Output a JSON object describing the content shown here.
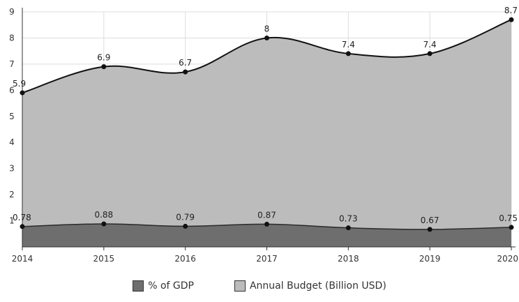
{
  "chart_data": {
    "type": "area",
    "title": "",
    "xlabel": "",
    "ylabel": "",
    "categories": [
      "2014",
      "2015",
      "2016",
      "2017",
      "2018",
      "2019",
      "2020"
    ],
    "ylim": [
      0,
      9
    ],
    "yticks": [
      1,
      2,
      3,
      4,
      5,
      6,
      7,
      8,
      9
    ],
    "grid": true,
    "legend_position": "bottom",
    "series": [
      {
        "name": "% of GDP",
        "values": [
          0.78,
          0.88,
          0.79,
          0.87,
          0.73,
          0.67,
          0.75
        ],
        "labels": [
          "0.78",
          "0.88",
          "0.79",
          "0.87",
          "0.73",
          "0.67",
          "0.75"
        ],
        "fill_color": "#6e6e6e"
      },
      {
        "name": "Annual Budget (Billion USD)",
        "values": [
          5.9,
          6.9,
          6.7,
          8,
          7.4,
          7.4,
          8.7
        ],
        "labels": [
          "5.9",
          "6.9",
          "6.7",
          "8",
          "7.4",
          "7.4",
          "8.7"
        ],
        "fill_color": "#bcbcbc"
      }
    ]
  }
}
